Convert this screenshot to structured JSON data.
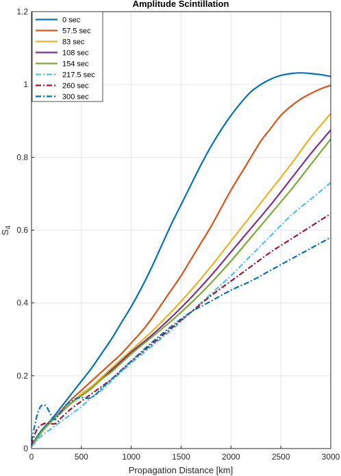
{
  "chart_data": {
    "type": "line",
    "title": "Amplitude Scintillation",
    "xlabel": "Propagation Distance [km]",
    "ylabel_main": "S",
    "ylabel_sub": "4",
    "xlim": [
      0,
      3000
    ],
    "ylim": [
      0,
      1.2
    ],
    "xticks": [
      "0",
      "500",
      "1000",
      "1500",
      "2000",
      "2500",
      "3000"
    ],
    "yticks": [
      "0",
      "0.2",
      "0.4",
      "0.6",
      "0.8",
      "1",
      "1.2"
    ],
    "grid": true,
    "legend_position": "top-left",
    "series": [
      {
        "name": "0 sec",
        "color": "#0072BD",
        "dash": "solid",
        "x": [
          0,
          50,
          100,
          200,
          300,
          400,
          500,
          600,
          700,
          800,
          900,
          1000,
          1100,
          1200,
          1300,
          1400,
          1500,
          1600,
          1700,
          1800,
          1900,
          2000,
          2100,
          2200,
          2300,
          2400,
          2500,
          2600,
          2700,
          2800,
          2900,
          3000
        ],
        "y": [
          0.005,
          0.03,
          0.05,
          0.08,
          0.115,
          0.15,
          0.185,
          0.22,
          0.26,
          0.3,
          0.345,
          0.39,
          0.44,
          0.495,
          0.555,
          0.615,
          0.67,
          0.725,
          0.78,
          0.83,
          0.875,
          0.915,
          0.95,
          0.98,
          1.0,
          1.015,
          1.025,
          1.03,
          1.032,
          1.03,
          1.027,
          1.022
        ]
      },
      {
        "name": "57.5 sec",
        "color": "#D95319",
        "dash": "solid",
        "x": [
          0,
          100,
          200,
          300,
          400,
          500,
          600,
          700,
          800,
          900,
          1000,
          1100,
          1200,
          1300,
          1400,
          1500,
          1600,
          1700,
          1800,
          1900,
          2000,
          2100,
          2200,
          2300,
          2400,
          2500,
          2600,
          2700,
          2800,
          2900,
          3000
        ],
        "y": [
          0.005,
          0.045,
          0.075,
          0.105,
          0.135,
          0.16,
          0.185,
          0.21,
          0.235,
          0.26,
          0.29,
          0.32,
          0.355,
          0.395,
          0.435,
          0.475,
          0.52,
          0.565,
          0.61,
          0.66,
          0.71,
          0.755,
          0.8,
          0.845,
          0.88,
          0.915,
          0.94,
          0.96,
          0.975,
          0.988,
          0.998
        ]
      },
      {
        "name": "83 sec",
        "color": "#EDB120",
        "dash": "solid",
        "x": [
          0,
          100,
          200,
          300,
          400,
          500,
          600,
          700,
          800,
          900,
          1000,
          1200,
          1400,
          1600,
          1800,
          2000,
          2200,
          2400,
          2600,
          2800,
          3000
        ],
        "y": [
          0.005,
          0.045,
          0.075,
          0.1,
          0.125,
          0.15,
          0.17,
          0.195,
          0.22,
          0.245,
          0.27,
          0.32,
          0.375,
          0.435,
          0.5,
          0.57,
          0.64,
          0.71,
          0.78,
          0.855,
          0.92
        ]
      },
      {
        "name": "108 sec",
        "color": "#7E2F8E",
        "dash": "solid",
        "x": [
          0,
          100,
          200,
          300,
          400,
          500,
          600,
          700,
          800,
          900,
          1000,
          1200,
          1400,
          1600,
          1800,
          2000,
          2200,
          2400,
          2600,
          2800,
          3000
        ],
        "y": [
          0.005,
          0.045,
          0.075,
          0.1,
          0.125,
          0.145,
          0.165,
          0.19,
          0.215,
          0.24,
          0.265,
          0.31,
          0.36,
          0.415,
          0.475,
          0.54,
          0.605,
          0.67,
          0.74,
          0.81,
          0.875
        ]
      },
      {
        "name": "154 sec",
        "color": "#77AC30",
        "dash": "solid",
        "x": [
          0,
          100,
          200,
          300,
          400,
          500,
          600,
          700,
          800,
          900,
          1000,
          1200,
          1400,
          1600,
          1800,
          2000,
          2200,
          2400,
          2600,
          2800,
          3000
        ],
        "y": [
          0.005,
          0.045,
          0.075,
          0.1,
          0.125,
          0.145,
          0.165,
          0.19,
          0.21,
          0.235,
          0.26,
          0.305,
          0.35,
          0.4,
          0.455,
          0.515,
          0.58,
          0.645,
          0.71,
          0.78,
          0.85
        ]
      },
      {
        "name": "217.5 sec",
        "color": "#4DBEEE",
        "dash": "dashdot",
        "x": [
          0,
          100,
          200,
          300,
          400,
          500,
          600,
          700,
          800,
          900,
          1000,
          1200,
          1400,
          1600,
          1800,
          2000,
          2200,
          2400,
          2600,
          2800,
          3000
        ],
        "y": [
          0.005,
          0.035,
          0.055,
          0.075,
          0.095,
          0.115,
          0.14,
          0.16,
          0.185,
          0.21,
          0.235,
          0.28,
          0.325,
          0.375,
          0.425,
          0.475,
          0.53,
          0.585,
          0.64,
          0.685,
          0.73
        ]
      },
      {
        "name": "260 sec",
        "color": "#A2142F",
        "dash": "dashdot",
        "x": [
          0,
          50,
          100,
          150,
          200,
          250,
          300,
          400,
          500,
          600,
          700,
          800,
          900,
          1000,
          1200,
          1400,
          1600,
          1800,
          2000,
          2200,
          2400,
          2600,
          2800,
          3000
        ],
        "y": [
          0.01,
          0.05,
          0.065,
          0.07,
          0.068,
          0.07,
          0.085,
          0.11,
          0.13,
          0.15,
          0.17,
          0.19,
          0.215,
          0.24,
          0.285,
          0.33,
          0.375,
          0.42,
          0.46,
          0.5,
          0.54,
          0.575,
          0.61,
          0.645
        ]
      },
      {
        "name": "300 sec",
        "color": "#0072BD",
        "dash": "dashdot",
        "x": [
          0,
          30,
          60,
          90,
          120,
          150,
          180,
          210,
          240,
          280,
          350,
          400,
          450,
          500,
          550,
          600,
          650,
          700,
          800,
          900,
          1000,
          1200,
          1400,
          1600,
          1800,
          2000,
          2200,
          2400,
          2600,
          2800,
          3000
        ],
        "y": [
          0.02,
          0.06,
          0.095,
          0.115,
          0.12,
          0.115,
          0.1,
          0.085,
          0.08,
          0.095,
          0.12,
          0.13,
          0.138,
          0.14,
          0.138,
          0.14,
          0.15,
          0.165,
          0.19,
          0.215,
          0.24,
          0.29,
          0.335,
          0.375,
          0.405,
          0.435,
          0.46,
          0.49,
          0.52,
          0.55,
          0.58
        ]
      }
    ]
  }
}
